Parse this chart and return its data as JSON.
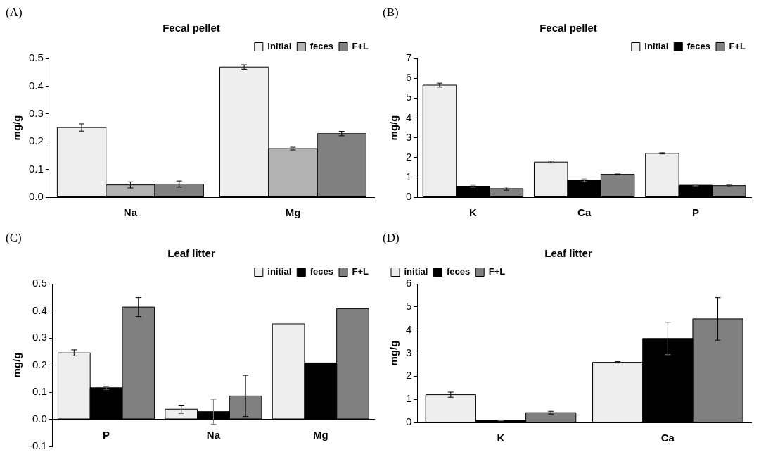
{
  "chart_data": [
    {
      "type": "bar",
      "title": "Fecal pellet",
      "ylabel": "mg/g",
      "annotations": [
        "(A)"
      ],
      "categories": [
        "Na",
        "Mg"
      ],
      "legend": "top right",
      "grid": false,
      "ylim": [
        0,
        0.5
      ],
      "yticks": [
        {
          "value": 0,
          "label": "0.0"
        },
        0.1,
        0.2,
        0.3,
        0.4,
        0.5
      ],
      "series": [
        {
          "name": "initial",
          "color": "#eeeeee",
          "values": [
            0.251,
            0.469
          ],
          "errors": [
            0.013,
            0.008
          ]
        },
        {
          "name": "feces",
          "color": "#b3b3b3",
          "values": [
            0.044,
            0.175
          ],
          "errors": [
            0.011,
            0.005
          ]
        },
        {
          "name": "F+L",
          "color": "#808080",
          "values": [
            0.047,
            0.229
          ],
          "errors": [
            0.011,
            0.008
          ]
        }
      ]
    },
    {
      "type": "bar",
      "title": "Fecal pellet",
      "ylabel": "mg/g",
      "annotations": [
        "(B)"
      ],
      "categories": [
        "K",
        "Ca",
        "P"
      ],
      "legend": "top right",
      "grid": false,
      "ylim": [
        0,
        7
      ],
      "yticks": [
        0,
        1,
        2,
        3,
        4,
        5,
        6,
        7
      ],
      "series": [
        {
          "name": "initial",
          "color": "#eeeeee",
          "values": [
            5.65,
            1.77,
            2.21
          ],
          "errors": [
            0.1,
            0.05,
            0.03
          ]
        },
        {
          "name": "feces",
          "color": "#000000",
          "values": [
            0.55,
            0.85,
            0.6
          ],
          "errors": [
            0.05,
            0.07,
            0.03
          ]
        },
        {
          "name": "F+L",
          "color": "#808080",
          "values": [
            0.43,
            1.15,
            0.58
          ],
          "errors": [
            0.08,
            0.02,
            0.06
          ]
        }
      ]
    },
    {
      "type": "bar",
      "title": "Leaf litter",
      "ylabel": "mg/g",
      "annotations": [
        "(C)"
      ],
      "categories": [
        "P",
        "Na",
        "Mg"
      ],
      "legend": "top right",
      "grid": false,
      "ylim": [
        -0.1,
        0.5
      ],
      "yticks": [
        -0.1,
        {
          "value": 0,
          "label": "0.0"
        },
        0.1,
        0.2,
        0.3,
        0.4,
        0.5
      ],
      "series": [
        {
          "name": "initial",
          "color": "#eeeeee",
          "values": [
            0.245,
            0.037,
            0.352
          ],
          "errors": [
            0.011,
            0.015,
            null
          ]
        },
        {
          "name": "feces",
          "color": "#000000",
          "values": [
            0.116,
            0.028,
            0.208
          ],
          "errors": [
            0.006,
            0.046,
            null
          ]
        },
        {
          "name": "F+L",
          "color": "#808080",
          "values": [
            0.414,
            0.086,
            0.408
          ],
          "errors": [
            0.035,
            0.076,
            null
          ]
        }
      ]
    },
    {
      "type": "bar",
      "title": "Leaf litter",
      "ylabel": "mg/g",
      "annotations": [
        "(D)"
      ],
      "categories": [
        "K",
        "Ca"
      ],
      "legend": "top left",
      "grid": false,
      "ylim": [
        0,
        6
      ],
      "yticks": [
        0,
        1,
        2,
        3,
        4,
        5,
        6
      ],
      "series": [
        {
          "name": "initial",
          "color": "#eeeeee",
          "values": [
            1.2,
            2.6
          ],
          "errors": [
            0.11,
            0.03
          ]
        },
        {
          "name": "feces",
          "color": "#000000",
          "values": [
            0.09,
            3.63
          ],
          "errors": [
            0.02,
            0.7
          ]
        },
        {
          "name": "F+L",
          "color": "#808080",
          "values": [
            0.42,
            4.48
          ],
          "errors": [
            0.06,
            0.92
          ]
        }
      ]
    }
  ]
}
